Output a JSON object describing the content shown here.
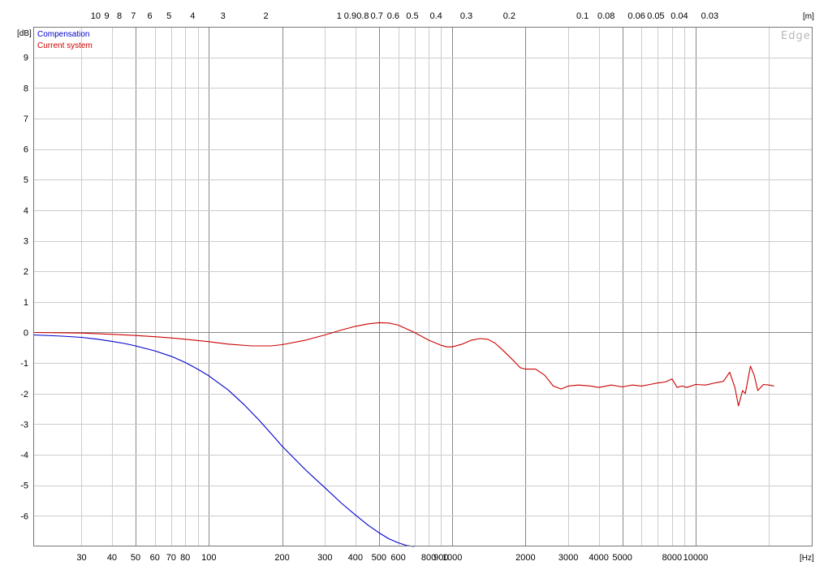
{
  "chart_data": {
    "type": "line",
    "x_scale": "log",
    "xlim": [
      19,
      30000
    ],
    "ylim": [
      -7,
      10
    ],
    "grid": true,
    "xlabel": "[Hz]",
    "ylabel": "[dB]",
    "top_axis_label": "[m]",
    "watermark": "Edge",
    "x_ticks": [
      {
        "v": 30,
        "t": "30"
      },
      {
        "v": 40,
        "t": "40"
      },
      {
        "v": 50,
        "t": "50"
      },
      {
        "v": 60,
        "t": "60"
      },
      {
        "v": 70,
        "t": "70"
      },
      {
        "v": 80,
        "t": "80"
      },
      {
        "v": 100,
        "t": "100"
      },
      {
        "v": 200,
        "t": "200"
      },
      {
        "v": 300,
        "t": "300"
      },
      {
        "v": 400,
        "t": "400"
      },
      {
        "v": 500,
        "t": "500"
      },
      {
        "v": 600,
        "t": "600"
      },
      {
        "v": 800,
        "t": "800"
      },
      {
        "v": 900,
        "t": "900"
      },
      {
        "v": 1000,
        "t": "1000"
      },
      {
        "v": 2000,
        "t": "2000"
      },
      {
        "v": 3000,
        "t": "3000"
      },
      {
        "v": 4000,
        "t": "4000"
      },
      {
        "v": 5000,
        "t": "5000"
      },
      {
        "v": 8000,
        "t": "8000"
      },
      {
        "v": 10000,
        "t": "10000"
      }
    ],
    "x_gridlines": [
      30,
      40,
      50,
      60,
      70,
      80,
      90,
      100,
      200,
      300,
      400,
      500,
      600,
      700,
      800,
      900,
      1000,
      2000,
      3000,
      4000,
      5000,
      6000,
      7000,
      8000,
      9000,
      10000,
      20000
    ],
    "x_major_gridlines": [
      50,
      100,
      200,
      500,
      1000,
      2000,
      5000,
      10000
    ],
    "y_ticks": [
      9,
      8,
      7,
      6,
      5,
      4,
      3,
      2,
      1,
      0,
      -1,
      -2,
      -3,
      -4,
      -5,
      -6
    ],
    "top_ticks": [
      {
        "f": 34.3,
        "t": "10"
      },
      {
        "f": 38.1,
        "t": "9"
      },
      {
        "f": 42.9,
        "t": "8"
      },
      {
        "f": 49.0,
        "t": "7"
      },
      {
        "f": 57.2,
        "t": "6"
      },
      {
        "f": 68.6,
        "t": "5"
      },
      {
        "f": 85.8,
        "t": "4"
      },
      {
        "f": 114.3,
        "t": "3"
      },
      {
        "f": 171.5,
        "t": "2"
      },
      {
        "f": 343,
        "t": "1"
      },
      {
        "f": 381,
        "t": "0.9"
      },
      {
        "f": 429,
        "t": "0.8"
      },
      {
        "f": 490,
        "t": "0.7"
      },
      {
        "f": 572,
        "t": "0.6"
      },
      {
        "f": 686,
        "t": "0.5"
      },
      {
        "f": 858,
        "t": "0.4"
      },
      {
        "f": 1143,
        "t": "0.3"
      },
      {
        "f": 1715,
        "t": "0.2"
      },
      {
        "f": 3430,
        "t": "0.1"
      },
      {
        "f": 4288,
        "t": "0.08"
      },
      {
        "f": 5717,
        "t": "0.06"
      },
      {
        "f": 6860,
        "t": "0.05"
      },
      {
        "f": 8575,
        "t": "0.04"
      },
      {
        "f": 11433,
        "t": "0.03"
      }
    ],
    "series": [
      {
        "name": "Compensation",
        "color": "#0000cc",
        "points": [
          [
            19,
            -0.08
          ],
          [
            25,
            -0.12
          ],
          [
            30,
            -0.16
          ],
          [
            35,
            -0.22
          ],
          [
            40,
            -0.29
          ],
          [
            45,
            -0.36
          ],
          [
            50,
            -0.44
          ],
          [
            60,
            -0.6
          ],
          [
            70,
            -0.78
          ],
          [
            80,
            -0.98
          ],
          [
            90,
            -1.2
          ],
          [
            100,
            -1.42
          ],
          [
            120,
            -1.88
          ],
          [
            140,
            -2.37
          ],
          [
            160,
            -2.85
          ],
          [
            180,
            -3.3
          ],
          [
            200,
            -3.72
          ],
          [
            250,
            -4.5
          ],
          [
            300,
            -5.08
          ],
          [
            350,
            -5.58
          ],
          [
            400,
            -5.97
          ],
          [
            450,
            -6.3
          ],
          [
            500,
            -6.55
          ],
          [
            550,
            -6.75
          ],
          [
            600,
            -6.88
          ],
          [
            650,
            -6.97
          ],
          [
            700,
            -7.0
          ]
        ]
      },
      {
        "name": "Current system",
        "color": "#cc0000",
        "points": [
          [
            19,
            0.0
          ],
          [
            30,
            -0.02
          ],
          [
            40,
            -0.06
          ],
          [
            50,
            -0.1
          ],
          [
            60,
            -0.14
          ],
          [
            70,
            -0.18
          ],
          [
            80,
            -0.22
          ],
          [
            100,
            -0.3
          ],
          [
            120,
            -0.38
          ],
          [
            150,
            -0.44
          ],
          [
            180,
            -0.44
          ],
          [
            200,
            -0.4
          ],
          [
            250,
            -0.25
          ],
          [
            300,
            -0.08
          ],
          [
            350,
            0.08
          ],
          [
            400,
            0.2
          ],
          [
            450,
            0.28
          ],
          [
            500,
            0.32
          ],
          [
            550,
            0.31
          ],
          [
            600,
            0.24
          ],
          [
            700,
            0.0
          ],
          [
            800,
            -0.25
          ],
          [
            900,
            -0.42
          ],
          [
            950,
            -0.47
          ],
          [
            1000,
            -0.47
          ],
          [
            1100,
            -0.38
          ],
          [
            1200,
            -0.25
          ],
          [
            1300,
            -0.2
          ],
          [
            1400,
            -0.22
          ],
          [
            1500,
            -0.35
          ],
          [
            1600,
            -0.55
          ],
          [
            1800,
            -0.95
          ],
          [
            1900,
            -1.15
          ],
          [
            2000,
            -1.2
          ],
          [
            2200,
            -1.2
          ],
          [
            2400,
            -1.4
          ],
          [
            2600,
            -1.75
          ],
          [
            2800,
            -1.85
          ],
          [
            3000,
            -1.75
          ],
          [
            3300,
            -1.72
          ],
          [
            3700,
            -1.75
          ],
          [
            4000,
            -1.8
          ],
          [
            4500,
            -1.72
          ],
          [
            5000,
            -1.78
          ],
          [
            5500,
            -1.72
          ],
          [
            6000,
            -1.75
          ],
          [
            6500,
            -1.7
          ],
          [
            7000,
            -1.65
          ],
          [
            7500,
            -1.62
          ],
          [
            8000,
            -1.52
          ],
          [
            8400,
            -1.8
          ],
          [
            8800,
            -1.75
          ],
          [
            9200,
            -1.8
          ],
          [
            10000,
            -1.7
          ],
          [
            11000,
            -1.72
          ],
          [
            12000,
            -1.65
          ],
          [
            13000,
            -1.6
          ],
          [
            13800,
            -1.3
          ],
          [
            14500,
            -1.8
          ],
          [
            15000,
            -2.4
          ],
          [
            15600,
            -1.9
          ],
          [
            16000,
            -2.0
          ],
          [
            16800,
            -1.1
          ],
          [
            17400,
            -1.4
          ],
          [
            18000,
            -1.9
          ],
          [
            19000,
            -1.7
          ],
          [
            20000,
            -1.72
          ],
          [
            21000,
            -1.75
          ]
        ]
      }
    ]
  }
}
